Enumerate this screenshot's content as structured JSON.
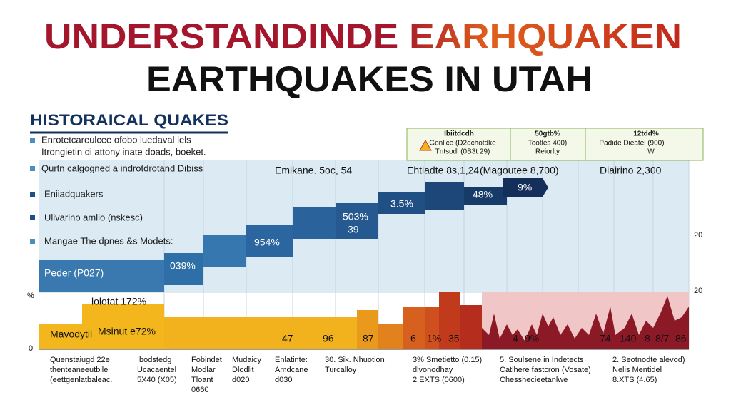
{
  "title": {
    "line1": "UNDERSTANDINDE EARHQUAKEN",
    "line2": "EARTHQUAKES IN UTAH"
  },
  "section": "HISTORAICAL QUAKES",
  "notes": [
    "Enrotetcareulcee ofobo luedaval lels",
    "Itrongietin di attony inate doads, boeket.",
    "Qurtn calgogned a indrotdrotand Dibiss"
  ],
  "legend": [
    "Eniiadquakers",
    "Ulivarino amlio (nskesc)",
    "Mangae The dpnes &s Modets:"
  ],
  "boxes": [
    {
      "lines": [
        "Ibiitdcdh",
        "Gonlice (D2dchotdke",
        "Tntsodl (0B3t 29)"
      ]
    },
    {
      "lines": [
        "50gtb%",
        "Teotles 400)",
        "Reiorlty"
      ]
    },
    {
      "lines": [
        "12tdd%",
        "Padide    Dieatel (900)",
        "W"
      ]
    }
  ],
  "callouts": [
    "Emikane. 5oc, 54",
    "Ehtiadte 8s,1,24",
    "(Magoutee 8,700)",
    "Diairino 2,300"
  ],
  "step_labels": [
    "Peder (P027)",
    "039%",
    "954%",
    "503%",
    "39",
    "3.5%",
    "48%",
    "9%"
  ],
  "axis_labels": [
    "20",
    "20",
    "%",
    "0"
  ],
  "bar_labels": [
    "Mavodytil",
    "Msinut e72%",
    "lolotat 172%",
    "47",
    "96",
    "87",
    "6",
    "1%",
    "35",
    "4",
    "9%",
    "74",
    "140",
    "8",
    "8/7",
    "86"
  ],
  "bottom": [
    {
      "lines": [
        "Quenstaiugd 22e",
        "thenteaneeutbile",
        "(eettgenlatbaleac."
      ]
    },
    {
      "lines": [
        "Ibodstedg",
        "Ucacaentel",
        "5X40 (X05)"
      ]
    },
    {
      "lines": [
        "Fobindet",
        "Modlar",
        "Tloant",
        "0660"
      ]
    },
    {
      "lines": [
        "Mudaicy",
        "Dlodlit",
        "d020"
      ]
    },
    {
      "lines": [
        "Enlatinte:",
        "Amdcane",
        "d030"
      ]
    },
    {
      "lines": [
        "30. Sik. Nhuotion",
        "Turcalloy"
      ]
    },
    {
      "lines": [
        "3% Smetietto (0.15)",
        "dlvonodhay",
        "2 EXTS (0600)"
      ]
    },
    {
      "lines": [
        "5. Soulsene in Indetects",
        "Catlhere fastcron (Vosate)",
        "Chesshecieetanlwe"
      ]
    },
    {
      "lines": [
        "2. Seotnodte alevod)",
        "Nelis Mentidel",
        "8.XTS (4.65)"
      ]
    }
  ]
}
